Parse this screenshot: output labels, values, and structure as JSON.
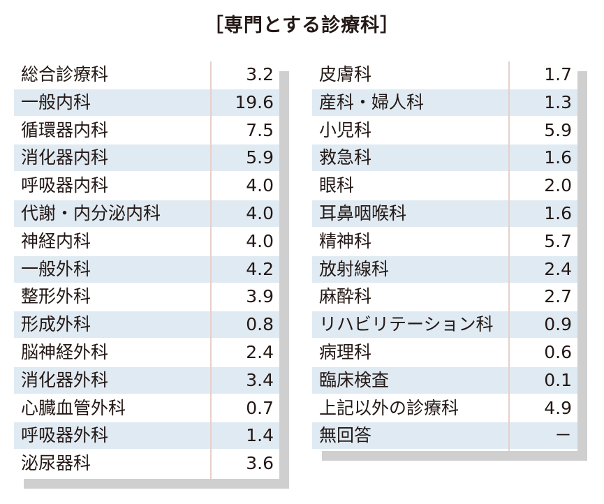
{
  "title": "［専門とする診療科］",
  "left_table": {
    "rows": [
      {
        "name": "総合診療科",
        "value": "3.2"
      },
      {
        "name": "一般内科",
        "value": "19.6"
      },
      {
        "name": "循環器内科",
        "value": "7.5"
      },
      {
        "name": "消化器内科",
        "value": "5.9"
      },
      {
        "name": "呼吸器内科",
        "value": "4.0"
      },
      {
        "name": "代謝・内分泌内科",
        "value": "4.0"
      },
      {
        "name": "神経内科",
        "value": "4.0"
      },
      {
        "name": "一般外科",
        "value": "4.2"
      },
      {
        "name": "整形外科",
        "value": "3.9"
      },
      {
        "name": "形成外科",
        "value": "0.8"
      },
      {
        "name": "脳神経外科",
        "value": "2.4"
      },
      {
        "name": "消化器外科",
        "value": "3.4"
      },
      {
        "name": "心臓血管外科",
        "value": "0.7"
      },
      {
        "name": "呼吸器外科",
        "value": "1.4"
      },
      {
        "name": "泌尿器科",
        "value": "3.6"
      }
    ]
  },
  "right_table": {
    "rows": [
      {
        "name": "皮膚科",
        "value": "1.7"
      },
      {
        "name": "産科・婦人科",
        "value": "1.3"
      },
      {
        "name": "小児科",
        "value": "5.9"
      },
      {
        "name": "救急科",
        "value": "1.6"
      },
      {
        "name": "眼科",
        "value": "2.0"
      },
      {
        "name": "耳鼻咽喉科",
        "value": "1.6"
      },
      {
        "name": "精神科",
        "value": "5.7"
      },
      {
        "name": "放射線科",
        "value": "2.4"
      },
      {
        "name": "麻酔科",
        "value": "2.7"
      },
      {
        "name": "リハビリテーション科",
        "value": "0.9"
      },
      {
        "name": "病理科",
        "value": "0.6"
      },
      {
        "name": "臨床検査",
        "value": "0.1"
      },
      {
        "name": "上記以外の診療科",
        "value": "4.9"
      },
      {
        "name": "無回答",
        "value": "－"
      }
    ]
  },
  "colors": {
    "alt_row": "#e0eaf2",
    "shadow": "#cfcfcf",
    "divider": "#e7cfc9",
    "text": "#231815"
  }
}
